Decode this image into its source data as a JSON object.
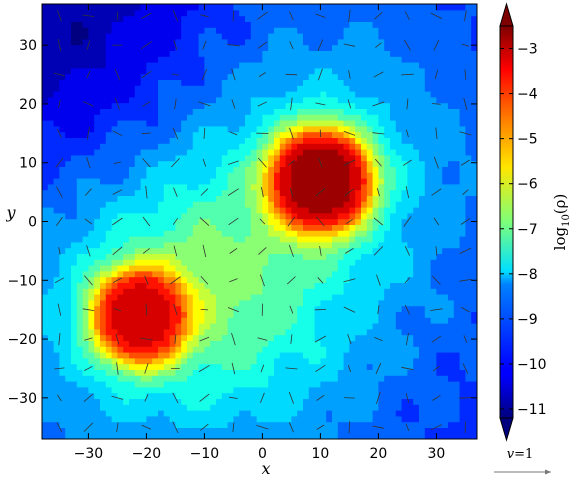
{
  "chart_data": {
    "type": "heatmap",
    "title": "",
    "xlabel": "x",
    "ylabel": "y",
    "xlim": [
      -38,
      37
    ],
    "ylim": [
      -37,
      37
    ],
    "x_ticks": [
      -30,
      -20,
      -10,
      0,
      10,
      20,
      30
    ],
    "y_ticks": [
      -30,
      -20,
      -10,
      0,
      10,
      20,
      30
    ],
    "x_tick_labels": [
      "−30",
      "−20",
      "−10",
      "0",
      "10",
      "20",
      "30"
    ],
    "y_tick_labels": [
      "−30",
      "−20",
      "−10",
      "0",
      "10",
      "20",
      "30"
    ],
    "colorbar": {
      "label": "log10(ρ)",
      "label_prefix": "log",
      "label_sub": "10",
      "label_suffix": "(ρ)",
      "range": [
        -11.2,
        -2.5
      ],
      "ticks": [
        -3,
        -4,
        -5,
        -6,
        -7,
        -8,
        -9,
        -10,
        -11
      ],
      "tick_labels": [
        "−3",
        "−4",
        "−5",
        "−6",
        "−7",
        "−8",
        "−9",
        "−10",
        "−11"
      ],
      "colormap": "jet"
    },
    "density_peaks": [
      {
        "x": 10,
        "y": 7,
        "peak_log_rho": -2.8,
        "radius": 11
      },
      {
        "x": -21,
        "y": -16,
        "peak_log_rho": -3.3,
        "radius": 10
      }
    ],
    "background_log_rho": -9.8,
    "velocity_key": {
      "label": "v = 1",
      "label_v": "v",
      "label_eq": "=1",
      "value": 1
    },
    "colors": {
      "colormap_low": "#00007f",
      "colormap_high": "#7f0000",
      "vector": "#333333"
    }
  }
}
